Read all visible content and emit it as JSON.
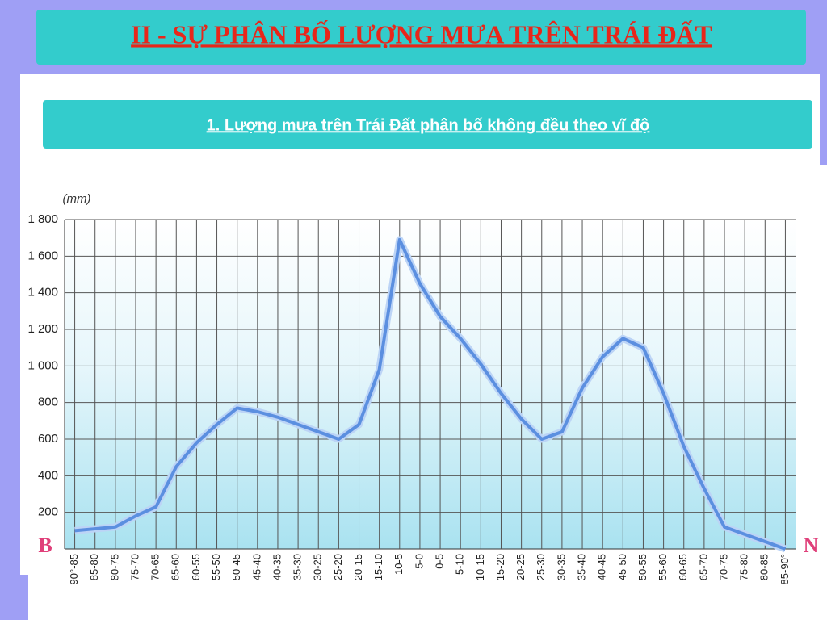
{
  "slide": {
    "title": "II - SỰ PHÂN BỐ LƯỢNG MƯA TRÊN TRÁI ĐẤT",
    "subtitle": "1. Lượng mưa trên Trái Đất phân bố không đều theo vĩ độ"
  },
  "chart_data": {
    "type": "line",
    "y_label": "(mm)",
    "left_label": "B",
    "right_label": "N",
    "categories": [
      "90°-85",
      "85-80",
      "80-75",
      "75-70",
      "70-65",
      "65-60",
      "60-55",
      "55-50",
      "50-45",
      "45-40",
      "40-35",
      "35-30",
      "30-25",
      "25-20",
      "20-15",
      "15-10",
      "10-5",
      "5-0",
      "0-5",
      "5-10",
      "10-15",
      "15-20",
      "20-25",
      "25-30",
      "30-35",
      "35-40",
      "40-45",
      "45-50",
      "50-55",
      "55-60",
      "60-65",
      "65-70",
      "70-75",
      "75-80",
      "80-85",
      "85-90°"
    ],
    "series": [
      {
        "name": "Lượng mưa",
        "color": "#5b8fe0",
        "values": [
          100,
          110,
          120,
          180,
          230,
          450,
          580,
          680,
          770,
          750,
          720,
          680,
          640,
          600,
          680,
          980,
          1690,
          1450,
          1270,
          1150,
          1010,
          850,
          710,
          600,
          640,
          880,
          1050,
          1150,
          1100,
          850,
          560,
          330,
          120,
          80,
          40,
          0
        ]
      }
    ],
    "ylim": [
      0,
      1800
    ],
    "yticks": [
      {
        "value": 200,
        "label": "200"
      },
      {
        "value": 400,
        "label": "400"
      },
      {
        "value": 600,
        "label": "600"
      },
      {
        "value": 800,
        "label": "800"
      },
      {
        "value": 1000,
        "label": "1 000"
      },
      {
        "value": 1200,
        "label": "1 200"
      },
      {
        "value": 1400,
        "label": "1 400"
      },
      {
        "value": 1600,
        "label": "1 600"
      },
      {
        "value": 1800,
        "label": "1 800"
      }
    ],
    "grid": true
  }
}
